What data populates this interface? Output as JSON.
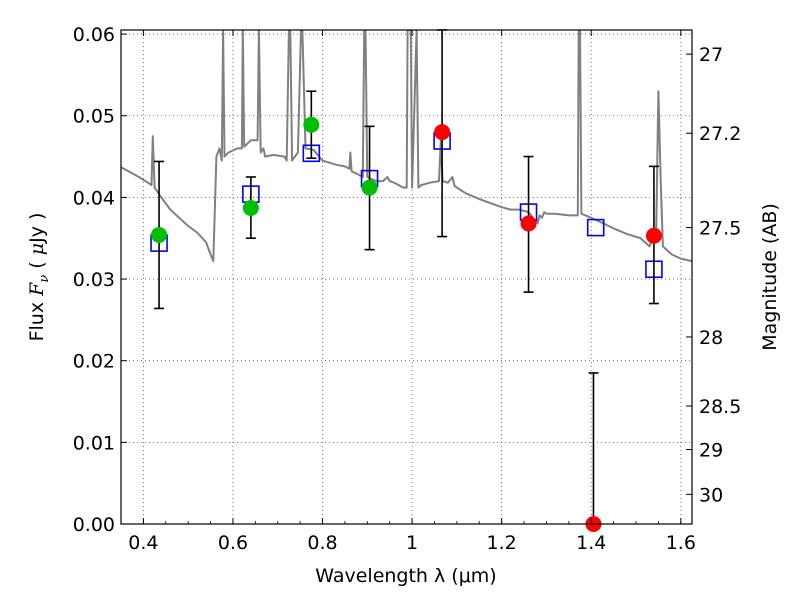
{
  "chart_data": {
    "type": "scatter",
    "title": "",
    "xlabel": "Wavelength  λ (μm)",
    "ylabel": "Flux  F_ν  ( μJy )",
    "ylabel_parts": [
      "Flux  ",
      "F",
      "ν",
      "  ( ",
      "μ",
      "Jy )"
    ],
    "y2label": "Magnitude (AB)",
    "xlim": [
      0.35,
      1.625
    ],
    "ylim": [
      0.0,
      0.0605
    ],
    "grid": true,
    "x_ticks": [
      0.4,
      0.6,
      0.8,
      1.0,
      1.2,
      1.4,
      1.6
    ],
    "x_tick_labels": [
      "0.4",
      "0.6",
      "0.8",
      "1",
      "1.2",
      "1.4",
      "1.6"
    ],
    "y_ticks": [
      0.0,
      0.01,
      0.02,
      0.03,
      0.04,
      0.05,
      0.06
    ],
    "y_tick_labels": [
      "0.00",
      "0.01",
      "0.02",
      "0.03",
      "0.04",
      "0.05",
      "0.06"
    ],
    "y2_ticks": [
      {
        "mag": 27,
        "label": "27"
      },
      {
        "mag": 27.2,
        "label": "27.2"
      },
      {
        "mag": 27.5,
        "label": "27.5"
      },
      {
        "mag": 28,
        "label": "28"
      },
      {
        "mag": 28.5,
        "label": "28.5"
      },
      {
        "mag": 29,
        "label": "29"
      },
      {
        "mag": 30,
        "label": "30"
      }
    ],
    "colors": {
      "template": "#808080",
      "model_marker": "#0000ff",
      "optical_detection": "#00bf00",
      "nir_detection": "#ff0000",
      "errorbar": "#000000",
      "grid": "#555555"
    },
    "series": [
      {
        "kind": "template_spectrum",
        "points": [
          [
            0.35,
            0.0437
          ],
          [
            0.37,
            0.0431
          ],
          [
            0.39,
            0.0425
          ],
          [
            0.41,
            0.0418
          ],
          [
            0.418,
            0.0415
          ],
          [
            0.421,
            0.0475
          ],
          [
            0.425,
            0.0412
          ],
          [
            0.44,
            0.04
          ],
          [
            0.46,
            0.0385
          ],
          [
            0.48,
            0.0375
          ],
          [
            0.5,
            0.0365
          ],
          [
            0.52,
            0.0357
          ],
          [
            0.54,
            0.0345
          ],
          [
            0.55,
            0.033
          ],
          [
            0.556,
            0.0322
          ],
          [
            0.563,
            0.045
          ],
          [
            0.57,
            0.046
          ],
          [
            0.575,
            0.0445
          ],
          [
            0.578,
            0.0605
          ],
          [
            0.581,
            0.045
          ],
          [
            0.59,
            0.0455
          ],
          [
            0.61,
            0.046
          ],
          [
            0.62,
            0.046
          ],
          [
            0.622,
            0.0605
          ],
          [
            0.625,
            0.0462
          ],
          [
            0.64,
            0.047
          ],
          [
            0.655,
            0.047
          ],
          [
            0.658,
            0.0605
          ],
          [
            0.662,
            0.0455
          ],
          [
            0.668,
            0.046
          ],
          [
            0.672,
            0.045
          ],
          [
            0.69,
            0.0452
          ],
          [
            0.715,
            0.045
          ],
          [
            0.72,
            0.0445
          ],
          [
            0.725,
            0.0605
          ],
          [
            0.728,
            0.0605
          ],
          [
            0.732,
            0.0445
          ],
          [
            0.745,
            0.0455
          ],
          [
            0.752,
            0.0605
          ],
          [
            0.755,
            0.0605
          ],
          [
            0.762,
            0.046
          ],
          [
            0.78,
            0.0458
          ],
          [
            0.8,
            0.0445
          ],
          [
            0.83,
            0.044
          ],
          [
            0.85,
            0.0438
          ],
          [
            0.86,
            0.0435
          ],
          [
            0.862,
            0.0455
          ],
          [
            0.865,
            0.0432
          ],
          [
            0.88,
            0.0428
          ],
          [
            0.89,
            0.0425
          ],
          [
            0.893,
            0.0605
          ],
          [
            0.896,
            0.0605
          ],
          [
            0.9,
            0.0425
          ],
          [
            0.92,
            0.042
          ],
          [
            0.935,
            0.042
          ],
          [
            0.945,
            0.0425
          ],
          [
            0.95,
            0.042
          ],
          [
            0.96,
            0.0418
          ],
          [
            0.97,
            0.0415
          ],
          [
            0.98,
            0.0412
          ],
          [
            0.988,
            0.0412
          ],
          [
            0.99,
            0.0605
          ],
          [
            0.993,
            0.0605
          ],
          [
            0.997,
            0.0605
          ],
          [
            1.0,
            0.0412
          ],
          [
            1.01,
            0.0605
          ],
          [
            1.014,
            0.0412
          ],
          [
            1.02,
            0.0415
          ],
          [
            1.04,
            0.0418
          ],
          [
            1.06,
            0.042
          ],
          [
            1.064,
            0.047
          ],
          [
            1.068,
            0.042
          ],
          [
            1.08,
            0.0418
          ],
          [
            1.09,
            0.0425
          ],
          [
            1.095,
            0.0414
          ],
          [
            1.1,
            0.0412
          ],
          [
            1.12,
            0.0405
          ],
          [
            1.15,
            0.0398
          ],
          [
            1.18,
            0.0392
          ],
          [
            1.2,
            0.0388
          ],
          [
            1.22,
            0.0385
          ],
          [
            1.24,
            0.0385
          ],
          [
            1.26,
            0.0382
          ],
          [
            1.27,
            0.0375
          ],
          [
            1.28,
            0.0368
          ],
          [
            1.285,
            0.0378
          ],
          [
            1.29,
            0.0375
          ],
          [
            1.295,
            0.0382
          ],
          [
            1.3,
            0.038
          ],
          [
            1.32,
            0.038
          ],
          [
            1.35,
            0.0378
          ],
          [
            1.37,
            0.0378
          ],
          [
            1.372,
            0.0605
          ],
          [
            1.375,
            0.0605
          ],
          [
            1.378,
            0.038
          ],
          [
            1.4,
            0.0375
          ],
          [
            1.42,
            0.037
          ],
          [
            1.45,
            0.0362
          ],
          [
            1.48,
            0.0355
          ],
          [
            1.51,
            0.035
          ],
          [
            1.53,
            0.034
          ],
          [
            1.545,
            0.036
          ],
          [
            1.55,
            0.053
          ],
          [
            1.555,
            0.042
          ],
          [
            1.56,
            0.034
          ],
          [
            1.58,
            0.033
          ],
          [
            1.6,
            0.0325
          ],
          [
            1.625,
            0.0322
          ]
        ]
      },
      {
        "kind": "model_bandpass",
        "marker": "open-square",
        "points": [
          [
            0.435,
            0.0344
          ],
          [
            0.64,
            0.0404
          ],
          [
            0.775,
            0.0454
          ],
          [
            0.905,
            0.0423
          ],
          [
            1.067,
            0.0469
          ],
          [
            1.26,
            0.0382
          ],
          [
            1.41,
            0.0363
          ],
          [
            1.54,
            0.0312
          ]
        ]
      },
      {
        "kind": "optical_detections",
        "marker": "filled-circle",
        "points": [
          {
            "x": 0.435,
            "y": 0.0354,
            "err_lo": 0.0264,
            "err_hi": 0.0444
          },
          {
            "x": 0.64,
            "y": 0.0387,
            "err_lo": 0.035,
            "err_hi": 0.0425
          },
          {
            "x": 0.775,
            "y": 0.0489,
            "err_lo": 0.0448,
            "err_hi": 0.053
          },
          {
            "x": 0.905,
            "y": 0.0412,
            "err_lo": 0.0336,
            "err_hi": 0.0487
          }
        ]
      },
      {
        "kind": "nir_detections",
        "marker": "filled-circle",
        "points": [
          {
            "x": 1.067,
            "y": 0.048,
            "err_lo": 0.0352,
            "err_hi": 0.0605
          },
          {
            "x": 1.26,
            "y": 0.0368,
            "err_lo": 0.0284,
            "err_hi": 0.045
          },
          {
            "x": 1.405,
            "y": 0.0,
            "err_lo": 0.0,
            "err_hi": 0.0185
          },
          {
            "x": 1.54,
            "y": 0.0353,
            "err_lo": 0.027,
            "err_hi": 0.0438
          }
        ]
      }
    ]
  }
}
